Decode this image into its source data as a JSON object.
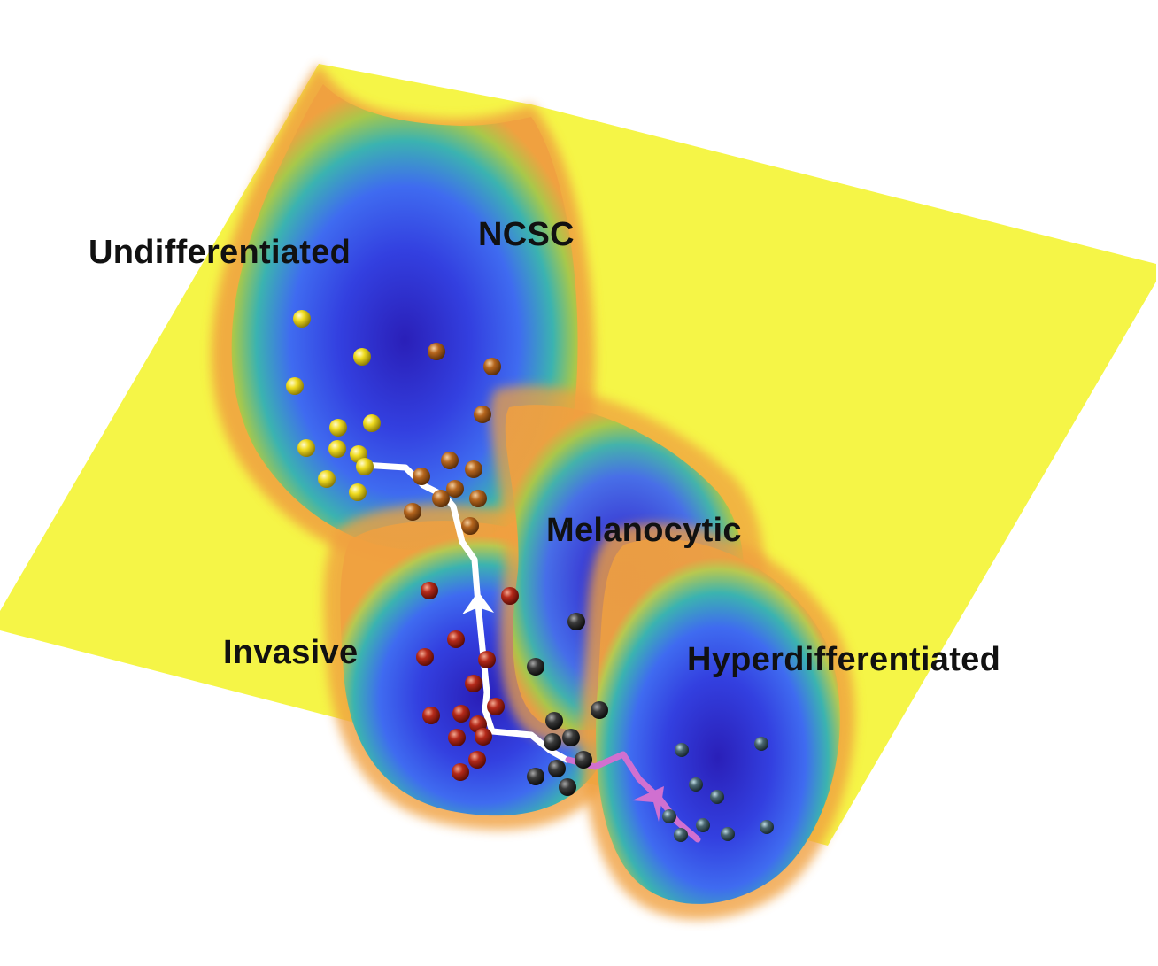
{
  "labels": {
    "undifferentiated": "Undifferentiated",
    "ncsc": "NCSC",
    "melanocytic": "Melanocytic",
    "invasive": "Invasive",
    "hyperdifferentiated": "Hyperdifferentiated"
  },
  "colors": {
    "plane": "#f5f547",
    "basin_deep": "#2a1fb8",
    "basin_mid": "#3f6bf0",
    "basin_edge_teal": "#3bb3b0",
    "basin_rim": "#f0a040",
    "cells_undifferentiated": "#e8d21a",
    "cells_ncsc": "#b5651d",
    "cells_invasive": "#b52a1a",
    "cells_melanocytic": "#3a3a3a",
    "cells_hyperdifferentiated": "#4a6670",
    "trajectory_main": "#ffffff",
    "trajectory_branch": "#d070d0"
  }
}
